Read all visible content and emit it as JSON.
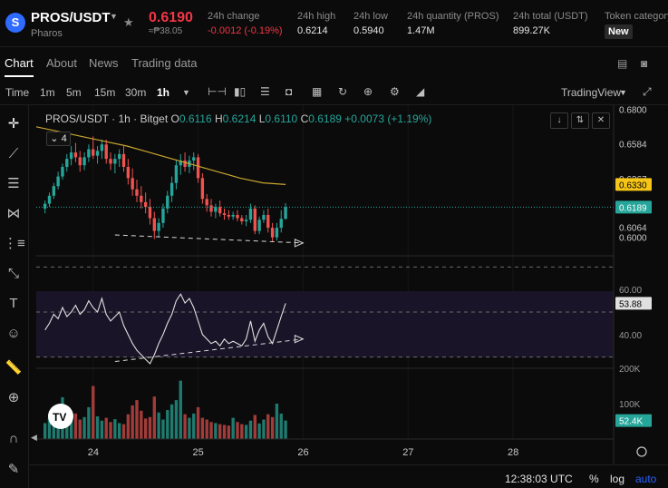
{
  "ticker": {
    "logo_letter": "S",
    "pair": "PROS/USDT",
    "name": "Pharos",
    "last_price": "0.6190",
    "fiat_price": "≈₱38.05",
    "stats": [
      {
        "label": "24h change",
        "value": "-0.0012 (-0.19%)",
        "negative": true
      },
      {
        "label": "24h high",
        "value": "0.6214"
      },
      {
        "label": "24h low",
        "value": "0.5940"
      },
      {
        "label": "24h quantity (PROS)",
        "value": "1.47M"
      },
      {
        "label": "24h total (USDT)",
        "value": "899.27K"
      },
      {
        "label": "Token category",
        "badge": "New"
      }
    ]
  },
  "tabs": [
    "Chart",
    "About",
    "News",
    "Trading data"
  ],
  "active_tab": "Chart",
  "toolbar": {
    "time_label": "Time",
    "intervals": [
      "1m",
      "5m",
      "15m",
      "30m",
      "1h"
    ],
    "active_interval": "1h",
    "tradingview_label": "TradingView"
  },
  "legend": {
    "title": "PROS/USDT · 1h · Bitget",
    "o_key": "O",
    "o": "0.6116",
    "h_key": "H",
    "h": "0.6214",
    "l_key": "L",
    "l": "0.6110",
    "c_key": "C",
    "c": "0.6189",
    "change": "+0.0073 (+1.19%)",
    "indicator_count": "4"
  },
  "colors": {
    "up": "#26a69a",
    "down": "#ef5350",
    "ma": "#c8a530",
    "rsi": "#e0e0e0",
    "accent": "#2962ff"
  },
  "chart_data": {
    "type": "candlestick",
    "price_axis_ticks": [
      "0.6800",
      "0.6584",
      "0.6367",
      "0.6064",
      "0.6000"
    ],
    "price_labels": [
      {
        "value": "0.6330",
        "style": "ma"
      },
      {
        "value": "0.6189",
        "style": "last"
      }
    ],
    "ylim": [
      0.5885,
      0.6825
    ],
    "x_ticks": [
      {
        "label": "24",
        "index": 11
      },
      {
        "label": "25",
        "index": 35
      },
      {
        "label": "26",
        "index": 59
      },
      {
        "label": "27",
        "index": 83
      },
      {
        "label": "28",
        "index": 107
      }
    ],
    "x_range": [
      -2,
      130
    ],
    "candles": [
      [
        0.618,
        0.623,
        0.615,
        0.621
      ],
      [
        0.621,
        0.628,
        0.619,
        0.626
      ],
      [
        0.626,
        0.634,
        0.624,
        0.632
      ],
      [
        0.632,
        0.641,
        0.63,
        0.638
      ],
      [
        0.638,
        0.646,
        0.636,
        0.644
      ],
      [
        0.644,
        0.652,
        0.641,
        0.649
      ],
      [
        0.649,
        0.657,
        0.645,
        0.653
      ],
      [
        0.653,
        0.659,
        0.647,
        0.65
      ],
      [
        0.65,
        0.654,
        0.641,
        0.645
      ],
      [
        0.645,
        0.653,
        0.642,
        0.65
      ],
      [
        0.65,
        0.658,
        0.647,
        0.655
      ],
      [
        0.655,
        0.663,
        0.649,
        0.651
      ],
      [
        0.651,
        0.657,
        0.646,
        0.654
      ],
      [
        0.654,
        0.661,
        0.649,
        0.658
      ],
      [
        0.658,
        0.661,
        0.646,
        0.649
      ],
      [
        0.649,
        0.653,
        0.642,
        0.646
      ],
      [
        0.646,
        0.652,
        0.64,
        0.649
      ],
      [
        0.649,
        0.655,
        0.644,
        0.652
      ],
      [
        0.652,
        0.657,
        0.641,
        0.644
      ],
      [
        0.644,
        0.649,
        0.633,
        0.637
      ],
      [
        0.637,
        0.643,
        0.626,
        0.63
      ],
      [
        0.63,
        0.636,
        0.622,
        0.626
      ],
      [
        0.626,
        0.632,
        0.618,
        0.622
      ],
      [
        0.622,
        0.628,
        0.615,
        0.619
      ],
      [
        0.619,
        0.624,
        0.608,
        0.612
      ],
      [
        0.612,
        0.616,
        0.599,
        0.604
      ],
      [
        0.604,
        0.612,
        0.6,
        0.609
      ],
      [
        0.609,
        0.621,
        0.606,
        0.618
      ],
      [
        0.618,
        0.629,
        0.615,
        0.626
      ],
      [
        0.626,
        0.638,
        0.622,
        0.634
      ],
      [
        0.634,
        0.648,
        0.63,
        0.645
      ],
      [
        0.645,
        0.652,
        0.639,
        0.648
      ],
      [
        0.648,
        0.653,
        0.641,
        0.644
      ],
      [
        0.644,
        0.651,
        0.64,
        0.648
      ],
      [
        0.648,
        0.653,
        0.642,
        0.65
      ],
      [
        0.65,
        0.652,
        0.634,
        0.637
      ],
      [
        0.637,
        0.64,
        0.621,
        0.624
      ],
      [
        0.624,
        0.627,
        0.616,
        0.62
      ],
      [
        0.62,
        0.624,
        0.613,
        0.616
      ],
      [
        0.616,
        0.621,
        0.612,
        0.619
      ],
      [
        0.619,
        0.623,
        0.613,
        0.615
      ],
      [
        0.615,
        0.618,
        0.611,
        0.614
      ],
      [
        0.614,
        0.617,
        0.611,
        0.613
      ],
      [
        0.613,
        0.616,
        0.611,
        0.614
      ],
      [
        0.614,
        0.617,
        0.61,
        0.612
      ],
      [
        0.612,
        0.614,
        0.608,
        0.61
      ],
      [
        0.61,
        0.614,
        0.607,
        0.611
      ],
      [
        0.611,
        0.621,
        0.609,
        0.618
      ],
      [
        0.618,
        0.62,
        0.602,
        0.604
      ],
      [
        0.604,
        0.613,
        0.602,
        0.611
      ],
      [
        0.611,
        0.617,
        0.609,
        0.614
      ],
      [
        0.614,
        0.618,
        0.603,
        0.606
      ],
      [
        0.606,
        0.609,
        0.597,
        0.6
      ],
      [
        0.6,
        0.609,
        0.598,
        0.606
      ],
      [
        0.606,
        0.617,
        0.603,
        0.6116
      ],
      [
        0.6116,
        0.6214,
        0.611,
        0.6189
      ]
    ],
    "ma_line": {
      "start_index": -2,
      "values": [
        0.669,
        0.666,
        0.663,
        0.66,
        0.657,
        0.653,
        0.649,
        0.645,
        0.641,
        0.637,
        0.634,
        0.633
      ]
    },
    "price_trendline": {
      "from": [
        16,
        0.6015
      ],
      "to": [
        59,
        0.5965
      ]
    },
    "rsi": {
      "axis_ticks": [
        "60.00",
        "40.00"
      ],
      "levels": [
        70,
        50,
        30
      ],
      "ylim": [
        25,
        75
      ],
      "last_label": "53.88",
      "values": [
        42,
        45,
        49,
        47,
        52,
        48,
        50,
        53,
        49,
        51,
        55,
        52,
        50,
        56,
        49,
        46,
        48,
        50,
        44,
        40,
        36,
        33,
        31,
        29,
        27,
        31,
        36,
        40,
        45,
        49,
        55,
        58,
        54,
        56,
        52,
        46,
        40,
        38,
        36,
        37,
        35,
        38,
        36,
        37,
        36,
        35,
        38,
        46,
        37,
        42,
        45,
        39,
        36,
        42,
        48,
        53.88
      ],
      "trendline": {
        "from": [
          16,
          28
        ],
        "to": [
          59,
          38
        ]
      }
    },
    "volume": {
      "axis_ticks": [
        "200K",
        "100K"
      ],
      "ylim": [
        0,
        200000
      ],
      "last_label": "52.4K",
      "values": [
        45000,
        60000,
        75000,
        95000,
        118000,
        68000,
        58000,
        72000,
        55000,
        62000,
        90000,
        150000,
        64000,
        52000,
        60000,
        48000,
        56000,
        45000,
        42000,
        70000,
        95000,
        110000,
        80000,
        58000,
        62000,
        120000,
        75000,
        55000,
        82000,
        98000,
        110000,
        165000,
        70000,
        60000,
        72000,
        90000,
        60000,
        55000,
        48000,
        45000,
        42000,
        40000,
        38000,
        60000,
        48000,
        42000,
        40000,
        52000,
        68000,
        44000,
        55000,
        70000,
        62000,
        100000,
        72000,
        52400
      ]
    }
  },
  "bottombar": {
    "time": "12:38:03 UTC",
    "percent": "%",
    "log": "log",
    "auto": "auto"
  }
}
